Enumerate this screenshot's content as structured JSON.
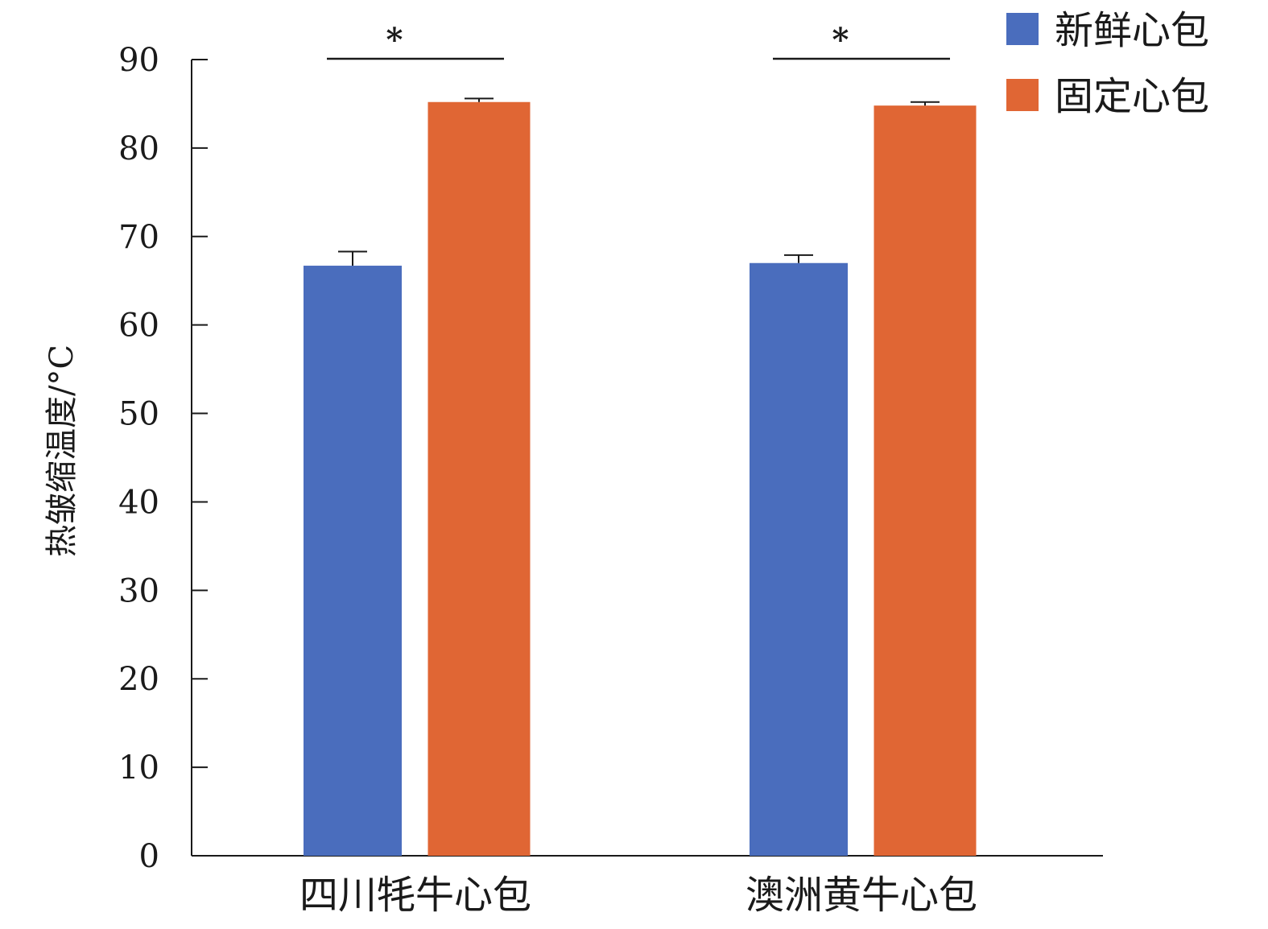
{
  "chart_data": {
    "type": "bar",
    "title": "",
    "xlabel": "",
    "ylabel": "热皱缩温度/°C",
    "ylim": [
      0,
      90
    ],
    "yticks": [
      0,
      10,
      20,
      30,
      40,
      50,
      60,
      70,
      80,
      90
    ],
    "grid": false,
    "legend_position": "top-right",
    "categories": [
      "四川牦牛心包",
      "澳洲黄牛心包"
    ],
    "series": [
      {
        "name": "新鲜心包",
        "color": "#4A6DBD",
        "values": [
          66.7,
          67.0
        ],
        "error": [
          1.6,
          0.9
        ]
      },
      {
        "name": "固定心包",
        "color": "#E06634",
        "values": [
          85.2,
          84.8
        ],
        "error": [
          0.4,
          0.4
        ]
      }
    ],
    "significance": [
      {
        "category": "四川牦牛心包",
        "label": "*"
      },
      {
        "category": "澳洲黄牛心包",
        "label": "*"
      }
    ]
  }
}
